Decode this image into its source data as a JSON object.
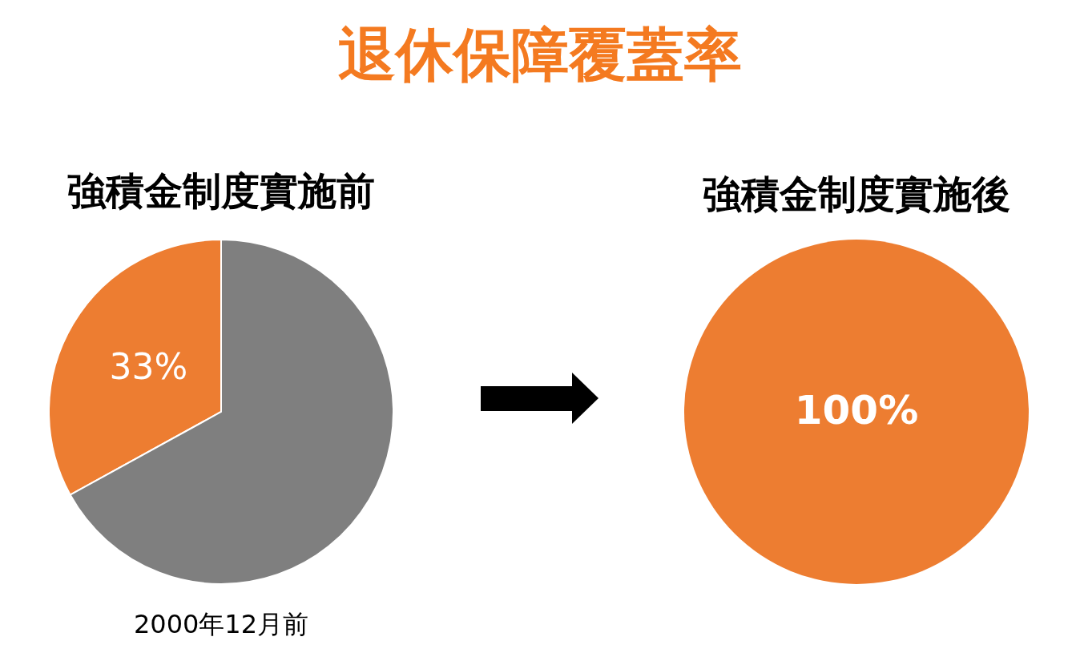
{
  "chart_data": [
    {
      "type": "pie",
      "title": "退休保障覆蓋率",
      "subtitle": "強積金制度實施前",
      "categories": [
        null,
        null
      ],
      "values": [
        33,
        67
      ],
      "colors": [
        "#ed7d31",
        "#7f7f7f"
      ],
      "value_labels": [
        "33%",
        null
      ],
      "annotations": [
        "2000年12月前"
      ]
    },
    {
      "type": "pie",
      "subtitle": "強積金制度實施後",
      "categories": [
        null
      ],
      "values": [
        100
      ],
      "colors": [
        "#ed7d31"
      ],
      "value_labels": [
        "100%"
      ]
    }
  ]
}
